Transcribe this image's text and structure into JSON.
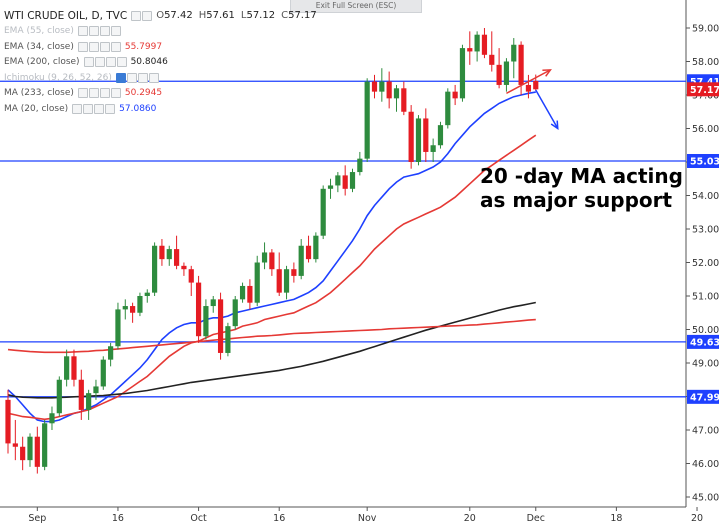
{
  "header": {
    "symbol": "WTI CRUDE OIL, D, TVC",
    "ohlc": [
      {
        "k": "O",
        "v": "57.42"
      },
      {
        "k": "H",
        "v": "57.61"
      },
      {
        "k": "L",
        "v": "57.12"
      },
      {
        "k": "C",
        "v": "57.17"
      }
    ],
    "exit_label": "Exit Full Screen (ESC)"
  },
  "indicators": [
    {
      "label": "EMA (55, close)",
      "value": "",
      "color": "#b8bcc2",
      "hidden": true
    },
    {
      "label": "EMA (34, close)",
      "value": "55.7997",
      "color": "#e53935"
    },
    {
      "label": "EMA (200, close)",
      "value": "50.8046",
      "color": "#222222"
    },
    {
      "label": "Ichimoku (9, 26, 52, 26)",
      "value": "",
      "color": "#b8bcc2",
      "hidden": true
    },
    {
      "label": "MA (233, close)",
      "value": "50.2945",
      "color": "#e53935"
    },
    {
      "label": "MA (20, close)",
      "value": "57.0860",
      "color": "#1e40ff"
    }
  ],
  "annotation": [
    "20 -day MA acting",
    "as major support"
  ],
  "chart_data": {
    "type": "candlestick",
    "ylim": [
      44.9,
      59.5
    ],
    "y_ticks": [
      "45.00",
      "46.00",
      "47.00",
      "48.00",
      "49.00",
      "50.00",
      "51.00",
      "52.00",
      "53.00",
      "54.00",
      "55.00",
      "56.00",
      "57.00",
      "58.00",
      "59.00"
    ],
    "x_ticks": [
      {
        "label": "Sep",
        "i": 4
      },
      {
        "label": "16",
        "i": 15
      },
      {
        "label": "Oct",
        "i": 26
      },
      {
        "label": "16",
        "i": 37
      },
      {
        "label": "Nov",
        "i": 49
      },
      {
        "label": "20",
        "i": 63
      },
      {
        "label": "Dec",
        "i": 72
      },
      {
        "label": "18",
        "i": 83
      },
      {
        "label": "20",
        "i": 94
      }
    ],
    "up_color": "#2e8b3e",
    "down_color": "#e51c23",
    "candles": [
      [
        47.9,
        48.2,
        46.3,
        46.6
      ],
      [
        46.6,
        47.3,
        46.1,
        46.5
      ],
      [
        46.5,
        46.8,
        45.8,
        46.1
      ],
      [
        46.1,
        46.9,
        45.9,
        46.8
      ],
      [
        46.8,
        47.1,
        45.7,
        45.9
      ],
      [
        45.9,
        47.3,
        45.8,
        47.2
      ],
      [
        47.2,
        47.7,
        47.0,
        47.5
      ],
      [
        47.5,
        48.6,
        47.4,
        48.5
      ],
      [
        48.5,
        49.4,
        48.3,
        49.2
      ],
      [
        49.2,
        49.4,
        48.3,
        48.5
      ],
      [
        48.5,
        48.8,
        47.3,
        47.6
      ],
      [
        47.6,
        48.2,
        47.3,
        48.1
      ],
      [
        48.1,
        48.5,
        47.9,
        48.3
      ],
      [
        48.3,
        49.2,
        48.2,
        49.1
      ],
      [
        49.1,
        49.6,
        48.9,
        49.5
      ],
      [
        49.5,
        50.8,
        49.4,
        50.6
      ],
      [
        50.6,
        50.9,
        50.3,
        50.7
      ],
      [
        50.7,
        50.8,
        50.2,
        50.5
      ],
      [
        50.5,
        51.1,
        50.4,
        51.0
      ],
      [
        51.0,
        51.2,
        50.8,
        51.1
      ],
      [
        51.1,
        52.6,
        51.0,
        52.5
      ],
      [
        52.5,
        52.7,
        51.9,
        52.1
      ],
      [
        52.1,
        52.5,
        51.9,
        52.4
      ],
      [
        52.4,
        52.8,
        51.8,
        51.9
      ],
      [
        51.9,
        52.0,
        51.6,
        51.8
      ],
      [
        51.8,
        51.9,
        51.0,
        51.4
      ],
      [
        51.4,
        51.6,
        49.6,
        49.8
      ],
      [
        49.8,
        50.9,
        49.7,
        50.7
      ],
      [
        50.7,
        51.0,
        50.5,
        50.9
      ],
      [
        50.9,
        51.1,
        49.1,
        49.3
      ],
      [
        49.3,
        50.2,
        49.2,
        50.1
      ],
      [
        50.1,
        51.0,
        50.0,
        50.9
      ],
      [
        50.9,
        51.4,
        50.8,
        51.3
      ],
      [
        51.3,
        51.5,
        50.6,
        50.8
      ],
      [
        50.8,
        52.2,
        50.7,
        52.0
      ],
      [
        52.0,
        52.6,
        51.8,
        52.3
      ],
      [
        52.3,
        52.4,
        51.6,
        51.8
      ],
      [
        51.8,
        52.3,
        51.0,
        51.1
      ],
      [
        51.1,
        51.9,
        50.9,
        51.8
      ],
      [
        51.8,
        52.0,
        51.4,
        51.6
      ],
      [
        51.6,
        52.7,
        51.5,
        52.5
      ],
      [
        52.5,
        52.8,
        52.0,
        52.1
      ],
      [
        52.1,
        52.9,
        52.0,
        52.8
      ],
      [
        52.8,
        54.3,
        52.7,
        54.2
      ],
      [
        54.2,
        54.5,
        53.9,
        54.3
      ],
      [
        54.3,
        54.7,
        54.1,
        54.6
      ],
      [
        54.6,
        54.9,
        54.0,
        54.2
      ],
      [
        54.2,
        54.8,
        54.1,
        54.7
      ],
      [
        54.7,
        55.3,
        54.6,
        55.1
      ],
      [
        55.1,
        57.5,
        55.0,
        57.4
      ],
      [
        57.4,
        57.6,
        56.9,
        57.1
      ],
      [
        57.1,
        57.8,
        56.8,
        57.4
      ],
      [
        57.4,
        57.7,
        56.6,
        56.9
      ],
      [
        56.9,
        57.3,
        56.5,
        57.2
      ],
      [
        57.2,
        57.4,
        56.4,
        56.5
      ],
      [
        56.5,
        56.7,
        54.8,
        55.0
      ],
      [
        55.0,
        56.4,
        54.9,
        56.3
      ],
      [
        56.3,
        56.6,
        55.0,
        55.3
      ],
      [
        55.3,
        55.7,
        55.0,
        55.5
      ],
      [
        55.5,
        56.2,
        55.4,
        56.1
      ],
      [
        56.1,
        57.2,
        56.0,
        57.1
      ],
      [
        57.1,
        57.3,
        56.7,
        56.9
      ],
      [
        56.9,
        58.5,
        56.8,
        58.4
      ],
      [
        58.4,
        58.9,
        57.9,
        58.3
      ],
      [
        58.3,
        58.9,
        58.0,
        58.8
      ],
      [
        58.8,
        59.0,
        58.1,
        58.2
      ],
      [
        58.2,
        58.9,
        57.7,
        57.9
      ],
      [
        57.9,
        58.4,
        57.2,
        57.3
      ],
      [
        57.3,
        58.1,
        57.1,
        58.0
      ],
      [
        58.0,
        58.7,
        57.5,
        58.5
      ],
      [
        58.5,
        58.6,
        57.0,
        57.3
      ],
      [
        57.3,
        57.6,
        56.9,
        57.1
      ],
      [
        57.42,
        57.61,
        57.12,
        57.17
      ]
    ],
    "ma_series": [
      {
        "name": "MA (20, close)",
        "color": "#1e40ff",
        "values": [
          48.2,
          48.0,
          47.75,
          47.5,
          47.3,
          47.25,
          47.25,
          47.3,
          47.4,
          47.5,
          47.55,
          47.65,
          47.75,
          47.9,
          48.05,
          48.25,
          48.45,
          48.65,
          48.85,
          49.1,
          49.4,
          49.7,
          49.9,
          50.05,
          50.15,
          50.2,
          50.2,
          50.3,
          50.35,
          50.35,
          50.4,
          50.5,
          50.55,
          50.6,
          50.65,
          50.7,
          50.75,
          50.8,
          50.85,
          50.9,
          51.0,
          51.1,
          51.25,
          51.45,
          51.75,
          52.05,
          52.35,
          52.65,
          53.0,
          53.4,
          53.7,
          53.95,
          54.2,
          54.4,
          54.55,
          54.6,
          54.65,
          54.75,
          54.85,
          55.0,
          55.25,
          55.55,
          55.8,
          56.05,
          56.25,
          56.45,
          56.6,
          56.75,
          56.85,
          56.95,
          57.0,
          57.05,
          57.086
        ]
      },
      {
        "name": "EMA (34, close)",
        "color": "#e53935",
        "values": [
          47.5,
          47.45,
          47.4,
          47.38,
          47.35,
          47.32,
          47.35,
          47.4,
          47.45,
          47.5,
          47.55,
          47.6,
          47.7,
          47.8,
          47.9,
          48.0,
          48.15,
          48.3,
          48.45,
          48.6,
          48.8,
          49.0,
          49.2,
          49.35,
          49.5,
          49.6,
          49.65,
          49.75,
          49.85,
          49.9,
          49.95,
          50.0,
          50.1,
          50.15,
          50.2,
          50.3,
          50.35,
          50.4,
          50.45,
          50.5,
          50.6,
          50.7,
          50.8,
          50.95,
          51.1,
          51.3,
          51.5,
          51.7,
          51.9,
          52.15,
          52.4,
          52.6,
          52.8,
          53.0,
          53.15,
          53.25,
          53.35,
          53.45,
          53.55,
          53.65,
          53.8,
          53.95,
          54.15,
          54.35,
          54.55,
          54.75,
          54.9,
          55.05,
          55.2,
          55.35,
          55.5,
          55.65,
          55.7997
        ]
      },
      {
        "name": "EMA (200, close)",
        "color": "#222222",
        "values": [
          48.05,
          48.0,
          47.98,
          47.97,
          47.96,
          47.96,
          47.96,
          47.97,
          47.98,
          47.99,
          48.0,
          48.01,
          48.02,
          48.03,
          48.05,
          48.07,
          48.09,
          48.12,
          48.15,
          48.18,
          48.22,
          48.26,
          48.3,
          48.34,
          48.38,
          48.42,
          48.45,
          48.48,
          48.51,
          48.54,
          48.57,
          48.6,
          48.63,
          48.66,
          48.69,
          48.72,
          48.75,
          48.78,
          48.82,
          48.86,
          48.9,
          48.95,
          49.0,
          49.05,
          49.11,
          49.17,
          49.23,
          49.29,
          49.35,
          49.42,
          49.49,
          49.56,
          49.63,
          49.7,
          49.77,
          49.84,
          49.91,
          49.98,
          50.04,
          50.1,
          50.16,
          50.22,
          50.28,
          50.34,
          50.4,
          50.46,
          50.52,
          50.58,
          50.63,
          50.68,
          50.72,
          50.76,
          50.8046
        ]
      },
      {
        "name": "MA (233, close)",
        "color": "#e53935",
        "values": [
          49.4,
          49.38,
          49.36,
          49.34,
          49.33,
          49.32,
          49.32,
          49.32,
          49.32,
          49.33,
          49.34,
          49.35,
          49.37,
          49.38,
          49.4,
          49.42,
          49.44,
          49.46,
          49.48,
          49.5,
          49.52,
          49.54,
          49.56,
          49.58,
          49.6,
          49.62,
          49.64,
          49.66,
          49.68,
          49.7,
          49.72,
          49.74,
          49.76,
          49.78,
          49.8,
          49.81,
          49.82,
          49.84,
          49.86,
          49.88,
          49.89,
          49.9,
          49.91,
          49.92,
          49.93,
          49.94,
          49.95,
          49.96,
          49.97,
          49.98,
          49.99,
          50.0,
          50.02,
          50.03,
          50.04,
          50.05,
          50.06,
          50.07,
          50.08,
          50.09,
          50.1,
          50.11,
          50.12,
          50.13,
          50.14,
          50.16,
          50.18,
          50.2,
          50.22,
          50.24,
          50.26,
          50.28,
          50.2945
        ]
      }
    ],
    "h_lines": [
      {
        "value": 57.41,
        "label": "57.41",
        "color": "#1e40ff"
      },
      {
        "value": 55.03,
        "label": "55.03",
        "color": "#1e40ff"
      },
      {
        "value": 49.63,
        "label": "49.63",
        "color": "#1e40ff"
      },
      {
        "value": 47.99,
        "label": "47.99",
        "color": "#1e40ff"
      }
    ],
    "last_price": {
      "value": 57.17,
      "label": "57.17",
      "color": "#e51c23"
    },
    "arrows": [
      {
        "name": "trend-line",
        "points": [
          [
            68,
            57.05
          ],
          [
            74,
            57.75
          ]
        ],
        "color": "#e53935"
      },
      {
        "name": "projection-arrow",
        "points": [
          [
            72,
            57.15
          ],
          [
            75,
            56.0
          ]
        ],
        "color": "#1e40ff"
      }
    ]
  }
}
